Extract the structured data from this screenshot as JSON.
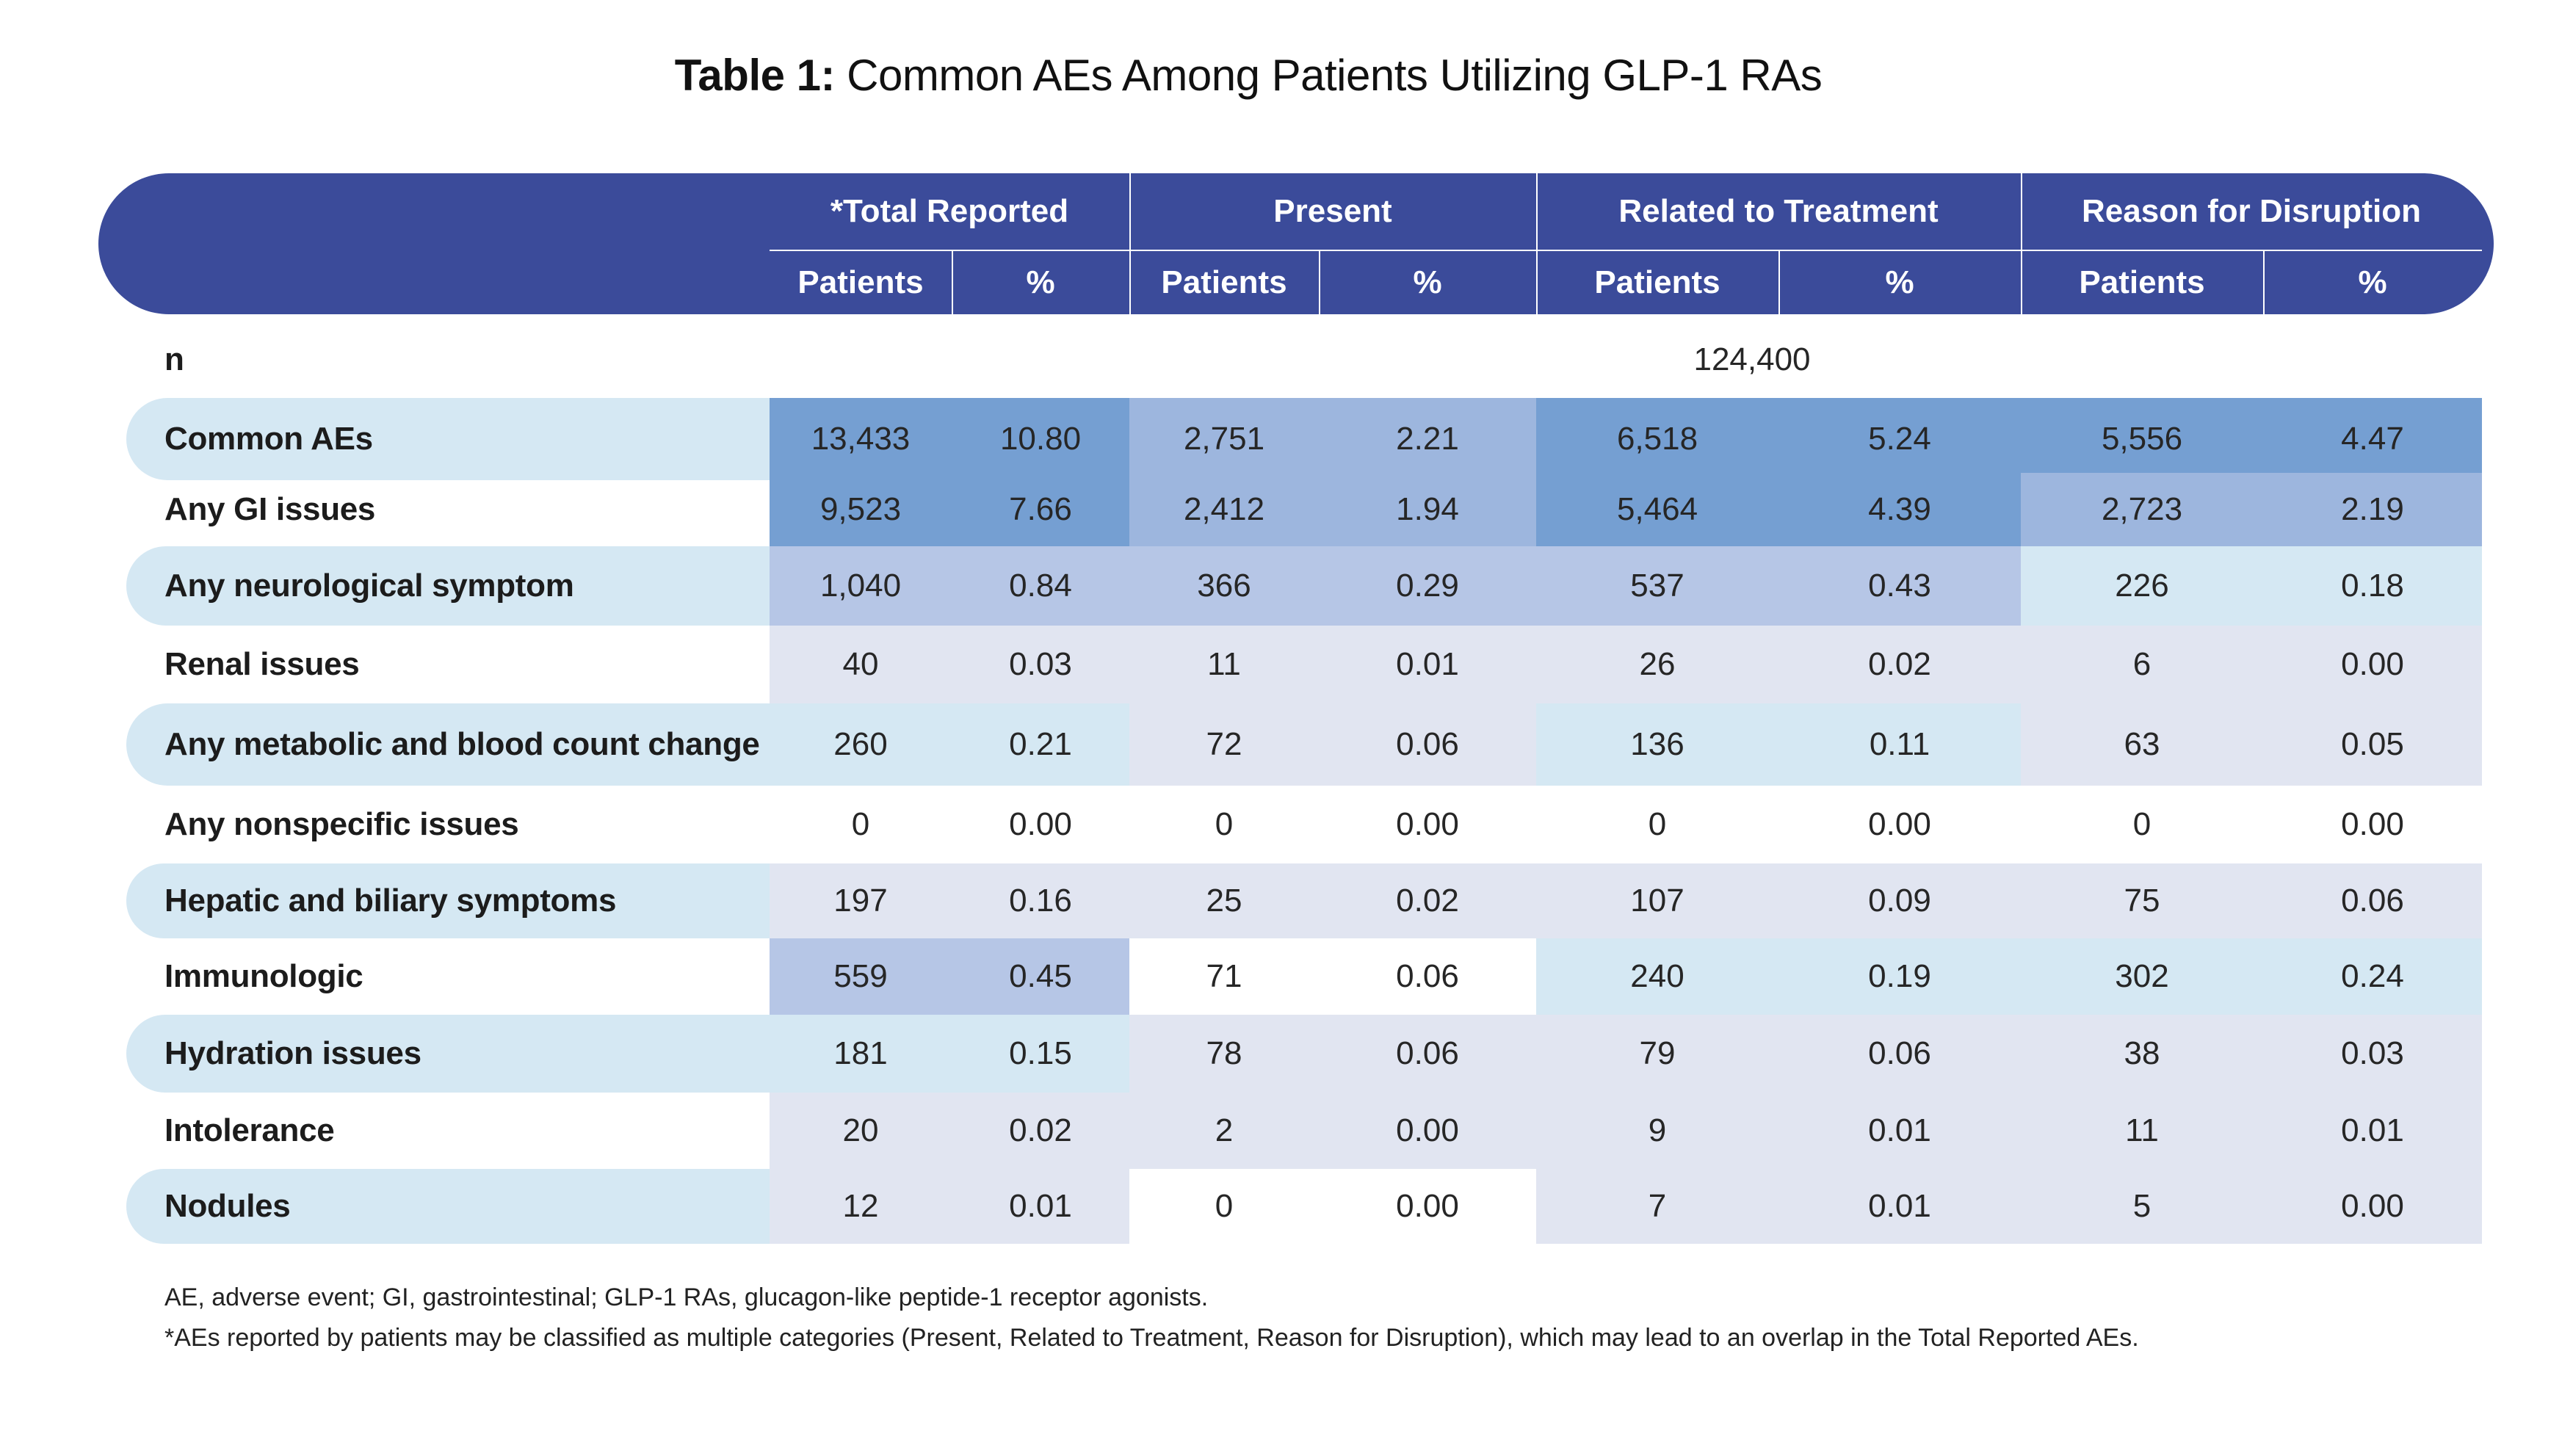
{
  "title": {
    "bold": "Table 1:",
    "rest": " Common AEs Among Patients Utilizing GLP-1 RAs"
  },
  "header": {
    "groups": [
      "*Total Reported",
      "Present",
      "Related to Treatment",
      "Reason for Disruption"
    ],
    "subcols": [
      "Patients",
      "%",
      "Patients",
      "%",
      "Patients",
      "%",
      "Patients",
      "%"
    ]
  },
  "n_row": {
    "label": "n",
    "value": "124,400"
  },
  "rows": [
    {
      "label": "Common AEs",
      "values": [
        "13,433",
        "10.80",
        "2,751",
        "2.21",
        "6,518",
        "5.24",
        "5,556",
        "4.47"
      ]
    },
    {
      "label": "Any GI issues",
      "values": [
        "9,523",
        "7.66",
        "2,412",
        "1.94",
        "5,464",
        "4.39",
        "2,723",
        "2.19"
      ]
    },
    {
      "label": "Any neurological symptom",
      "values": [
        "1,040",
        "0.84",
        "366",
        "0.29",
        "537",
        "0.43",
        "226",
        "0.18"
      ]
    },
    {
      "label": "Renal issues",
      "values": [
        "40",
        "0.03",
        "11",
        "0.01",
        "26",
        "0.02",
        "6",
        "0.00"
      ]
    },
    {
      "label": "Any metabolic and blood count change",
      "values": [
        "260",
        "0.21",
        "72",
        "0.06",
        "136",
        "0.11",
        "63",
        "0.05"
      ]
    },
    {
      "label": "Any nonspecific issues",
      "values": [
        "0",
        "0.00",
        "0",
        "0.00",
        "0",
        "0.00",
        "0",
        "0.00"
      ]
    },
    {
      "label": "Hepatic and biliary symptoms",
      "values": [
        "197",
        "0.16",
        "25",
        "0.02",
        "107",
        "0.09",
        "75",
        "0.06"
      ]
    },
    {
      "label": "Immunologic",
      "values": [
        "559",
        "0.45",
        "71",
        "0.06",
        "240",
        "0.19",
        "302",
        "0.24"
      ]
    },
    {
      "label": "Hydration issues",
      "values": [
        "181",
        "0.15",
        "78",
        "0.06",
        "79",
        "0.06",
        "38",
        "0.03"
      ]
    },
    {
      "label": "Intolerance",
      "values": [
        "20",
        "0.02",
        "2",
        "0.00",
        "9",
        "0.01",
        "11",
        "0.01"
      ]
    },
    {
      "label": "Nodules",
      "values": [
        "12",
        "0.01",
        "0",
        "0.00",
        "7",
        "0.01",
        "5",
        "0.00"
      ]
    }
  ],
  "footnotes": [
    "AE, adverse event; GI, gastrointestinal; GLP-1 RAs, glucagon-like peptide-1 receptor agonists.",
    "*AEs reported by patients may be classified as multiple categories (Present, Related to Treatment, Reason for Disruption), which may lead to an overlap in the Total Reported AEs."
  ],
  "colors": {
    "header": "#3b4b9a",
    "label_band": "#d5e8f3",
    "tiers": {
      "d": "#759fd2",
      "m": "#9db6de",
      "l": "#b6c6e6",
      "c": "#d5e8f3",
      "g": "#e1e5f1",
      "w": "#ffffff"
    }
  },
  "cell_shading": [
    [
      "d",
      "d",
      "m",
      "m",
      "d",
      "d",
      "d",
      "d"
    ],
    [
      "d",
      "d",
      "m",
      "m",
      "d",
      "d",
      "m",
      "m"
    ],
    [
      "l",
      "l",
      "l",
      "l",
      "l",
      "l",
      "c",
      "c"
    ],
    [
      "g",
      "g",
      "g",
      "g",
      "g",
      "g",
      "g",
      "g"
    ],
    [
      "c",
      "c",
      "g",
      "g",
      "c",
      "c",
      "g",
      "g"
    ],
    [
      "w",
      "w",
      "w",
      "w",
      "w",
      "w",
      "w",
      "w"
    ],
    [
      "g",
      "g",
      "g",
      "g",
      "g",
      "g",
      "g",
      "g"
    ],
    [
      "l",
      "l",
      "w",
      "w",
      "c",
      "c",
      "c",
      "c"
    ],
    [
      "c",
      "c",
      "g",
      "g",
      "g",
      "g",
      "g",
      "g"
    ],
    [
      "g",
      "g",
      "g",
      "g",
      "g",
      "g",
      "g",
      "g"
    ],
    [
      "g",
      "g",
      "w",
      "w",
      "g",
      "g",
      "g",
      "g"
    ]
  ]
}
